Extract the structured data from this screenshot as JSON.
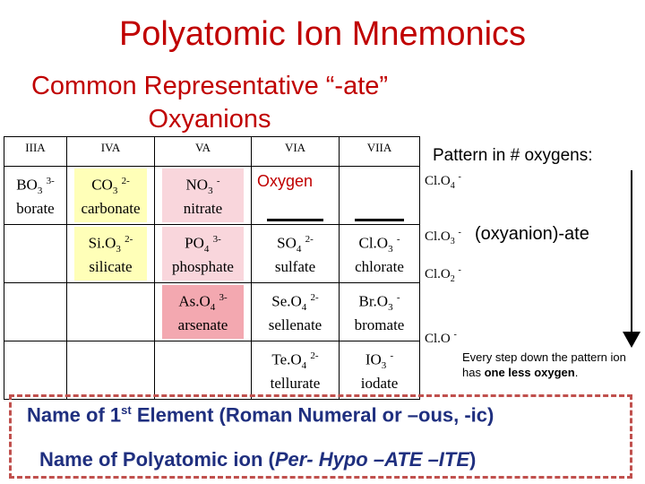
{
  "title": "Polyatomic Ion Mnemonics",
  "subtitle": "Common Representative “-ate” Oxyanions",
  "table": {
    "headers": [
      "IIIA",
      "IVA",
      "VA",
      "VIA",
      "VIIA"
    ],
    "oxygen_label": "Oxygen",
    "ions": {
      "borate": {
        "el": "BO",
        "n": "3",
        "charge": "3-",
        "name": "borate"
      },
      "carbonate": {
        "el": "CO",
        "n": "3",
        "charge": "2-",
        "name": "carbonate"
      },
      "nitrate": {
        "el": "NO",
        "n": "3",
        "charge": "-",
        "name": "nitrate"
      },
      "silicate": {
        "el": "Si.O",
        "n": "3",
        "charge": "2-",
        "name": "silicate"
      },
      "phosphate": {
        "el": "PO",
        "n": "4",
        "charge": "3-",
        "name": "phosphate"
      },
      "sulfate": {
        "el": "SO",
        "n": "4",
        "charge": "2-",
        "name": "sulfate"
      },
      "chlorate": {
        "el": "Cl.O",
        "n": "3",
        "charge": "-",
        "name": "chlorate"
      },
      "arsenate": {
        "el": "As.O",
        "n": "4",
        "charge": "3-",
        "name": "arsenate"
      },
      "sellenate": {
        "el": "Se.O",
        "n": "4",
        "charge": "2-",
        "name": "sellenate"
      },
      "bromate": {
        "el": "Br.O",
        "n": "3",
        "charge": "-",
        "name": "bromate"
      },
      "tellurate": {
        "el": "Te.O",
        "n": "4",
        "charge": "2-",
        "name": "tellurate"
      },
      "iodate": {
        "el": "IO",
        "n": "3",
        "charge": "-",
        "name": "iodate"
      }
    }
  },
  "pattern": {
    "title": "Pattern in # oxygens:",
    "ions": [
      {
        "el": "Cl.O",
        "n": "4",
        "charge": "-"
      },
      {
        "el": "Cl.O",
        "n": "3",
        "charge": "-"
      },
      {
        "el": "Cl.O",
        "n": "2",
        "charge": "-"
      },
      {
        "el": "Cl.O",
        "n": "",
        "charge": "-"
      }
    ],
    "ate_label": "(oxyanion)-ate",
    "note_prefix": "Every step down the pattern ion has ",
    "note_bold": "one less oxygen",
    "note_suffix": "."
  },
  "footer": {
    "line1_pre": "Name of 1",
    "line1_sup": "st",
    "line1_post": " Element (Roman Numeral or –ous, -ic)",
    "line2_pre": "Name of Polyatomic ion (",
    "line2_italic": "Per- Hypo –ATE –ITE",
    "line2_post": ")"
  },
  "colors": {
    "title": "#c00000",
    "highlight_yellow": "#ffffb8",
    "highlight_pink": "#f9d6dc",
    "highlight_salmon": "#f3a8b0",
    "footer_text": "#1f2f7f",
    "footer_border": "#c0504d"
  }
}
